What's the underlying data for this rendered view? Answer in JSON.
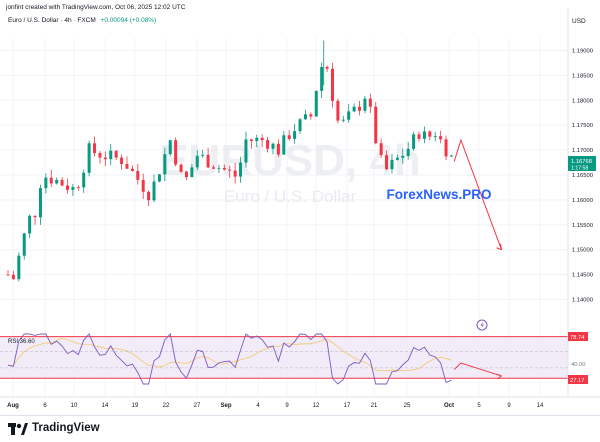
{
  "header": {
    "credit": "jonfint created with TradingView.com, Oct 06, 2025 12:02 UTC"
  },
  "symbol_line": {
    "name": "Euro / U.S. Dollar · 4h · FXCM",
    "change": "+0.00094 (+0.08%)"
  },
  "price_axis": {
    "currency": "USD",
    "ticks": [
      "1.19000",
      "1.18500",
      "1.18000",
      "1.17500",
      "1.17000",
      "1.16500",
      "1.16000",
      "1.15500",
      "1.15000",
      "1.14500",
      "1.14000"
    ],
    "last_price": "1.16768",
    "countdown": "1:17:58"
  },
  "rsi_axis": {
    "upper_value": "78.74",
    "lower_value": "27.17",
    "mid_value": "40.00"
  },
  "rsi_label": "RSI 36.60",
  "time_axis": [
    "Aug",
    "6",
    "10",
    "14",
    "19",
    "22",
    "27",
    "Sep",
    "4",
    "9",
    "12",
    "17",
    "21",
    "25",
    "Oct",
    "5",
    "9",
    "14"
  ],
  "watermark": {
    "symbol": "EURUSD, 4h",
    "name": "Euro / U.S. Dollar"
  },
  "brand_overlay": "ForexNews.PRO",
  "footer": {
    "logo_text": "TradingView"
  },
  "colors": {
    "up": "#089981",
    "down": "#f23645",
    "rsi_line": "#7e57c2",
    "rsi_band": "#ede7f6",
    "forecast": "#f23645",
    "brand": "#2962ff"
  },
  "chart_data": {
    "type": "candlestick",
    "symbol": "EURUSD",
    "timeframe": "4h",
    "ylim": [
      1.1375,
      1.1925
    ],
    "series_anchor_closes": [
      [
        "Aug 1",
        1.145
      ],
      [
        "Aug 1",
        1.14
      ],
      [
        "Aug 4",
        1.156
      ],
      [
        "Aug 5",
        1.1575
      ],
      [
        "Aug 6",
        1.165
      ],
      [
        "Aug 8",
        1.164
      ],
      [
        "Aug 11",
        1.162
      ],
      [
        "Aug 13",
        1.17
      ],
      [
        "Aug 15",
        1.169
      ],
      [
        "Aug 18",
        1.168
      ],
      [
        "Aug 20",
        1.1645
      ],
      [
        "Aug 22",
        1.161
      ],
      [
        "Aug 25",
        1.172
      ],
      [
        "Aug 27",
        1.163
      ],
      [
        "Aug 29",
        1.169
      ],
      [
        "Sep 2",
        1.166
      ],
      [
        "Sep 4",
        1.1645
      ],
      [
        "Sep 5",
        1.172
      ],
      [
        "Sep 8",
        1.172
      ],
      [
        "Sep 10",
        1.17
      ],
      [
        "Sep 12",
        1.174
      ],
      [
        "Sep 15",
        1.177
      ],
      [
        "Sep 16",
        1.186
      ],
      [
        "Sep 17",
        1.188
      ],
      [
        "Sep 18",
        1.181
      ],
      [
        "Sep 19",
        1.1745
      ],
      [
        "Sep 22",
        1.179
      ],
      [
        "Sep 23",
        1.1815
      ],
      [
        "Sep 25",
        1.168
      ],
      [
        "Sep 26",
        1.166
      ],
      [
        "Sep 29",
        1.17
      ],
      [
        "Oct 1",
        1.174
      ],
      [
        "Oct 2",
        1.172
      ],
      [
        "Oct 3",
        1.174
      ],
      [
        "Oct 6",
        1.1677
      ]
    ],
    "last_close": 1.16768,
    "forecast_path": [
      [
        "Oct 6",
        1.1677
      ],
      [
        "Oct 7",
        1.172
      ],
      [
        "Oct 13",
        1.15
      ]
    ],
    "rsi": {
      "label": "RSI",
      "current": 36.6,
      "upper_level": 78.74,
      "lower_level": 27.17,
      "forecast_path": [
        [
          "Oct 6",
          38
        ],
        [
          "Oct 7",
          46
        ],
        [
          "Oct 13",
          30
        ]
      ]
    }
  }
}
